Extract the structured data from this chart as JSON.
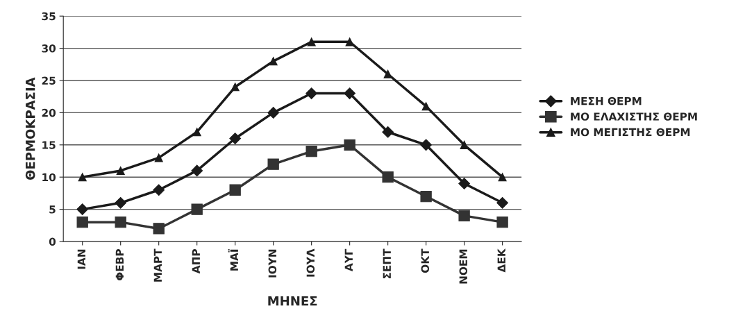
{
  "chart_data": {
    "type": "line",
    "xlabel": "ΜΗΝΕΣ",
    "ylabel": "ΘΕΡΜΟΚΡΑΣΙΑ",
    "categories": [
      "ΙΑΝ",
      "ΦΕΒΡ",
      "ΜΑΡΤ",
      "ΑΠΡ",
      "ΜΑΪ",
      "ΙΟΥΝ",
      "ΙΟΥΛ",
      "ΑΥΓ",
      "ΣΕΠΤ",
      "ΟΚΤ",
      "ΝΟΕΜ",
      "ΔΕΚ"
    ],
    "series": [
      {
        "name": "ΜΕΣΗ ΘΕΡΜ",
        "color": "#1a1a1a",
        "marker": "diamond",
        "values": [
          5,
          6,
          8,
          11,
          16,
          20,
          23,
          23,
          17,
          15,
          9,
          6
        ]
      },
      {
        "name": "ΜΟ ΕΛΑΧΙΣΤΗΣ ΘΕΡΜ",
        "color": "#333333",
        "marker": "square",
        "values": [
          3,
          3,
          2,
          5,
          8,
          12,
          14,
          15,
          10,
          7,
          4,
          3
        ]
      },
      {
        "name": "ΜΟ ΜΕΓΙΣΤΗΣ ΘΕΡΜ",
        "color": "#1a1a1a",
        "marker": "triangle",
        "values": [
          10,
          11,
          13,
          17,
          24,
          28,
          31,
          31,
          26,
          21,
          15,
          10
        ]
      }
    ],
    "ylim": [
      0,
      35
    ],
    "yticks": [
      0,
      5,
      10,
      15,
      20,
      25,
      30,
      35
    ],
    "grid": "y",
    "legend": "right",
    "line_style": "solid"
  }
}
